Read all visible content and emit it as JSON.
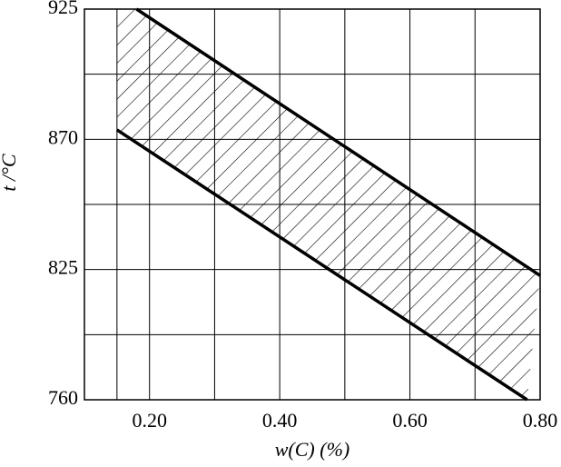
{
  "chart_data": {
    "type": "band",
    "x_label": "w(C) (%)",
    "y_label": "t /°C",
    "xlim": [
      0.1,
      0.8
    ],
    "xticks": [
      {
        "value": 0.2,
        "label": "0.20"
      },
      {
        "value": 0.4,
        "label": "0.40"
      },
      {
        "value": 0.6,
        "label": "0.60"
      },
      {
        "value": 0.8,
        "label": "0.80"
      }
    ],
    "ylim": [
      760,
      925
    ],
    "yticks": [
      760,
      825,
      870,
      925
    ],
    "grid": true,
    "hatch": true,
    "series": [
      {
        "color": "#000000",
        "x": [
          0.18,
          0.8
        ],
        "y": [
          925,
          822
        ]
      },
      {
        "color": "#000000",
        "x": [
          0.15,
          0.78
        ],
        "y": [
          874,
          760
        ]
      }
    ]
  }
}
